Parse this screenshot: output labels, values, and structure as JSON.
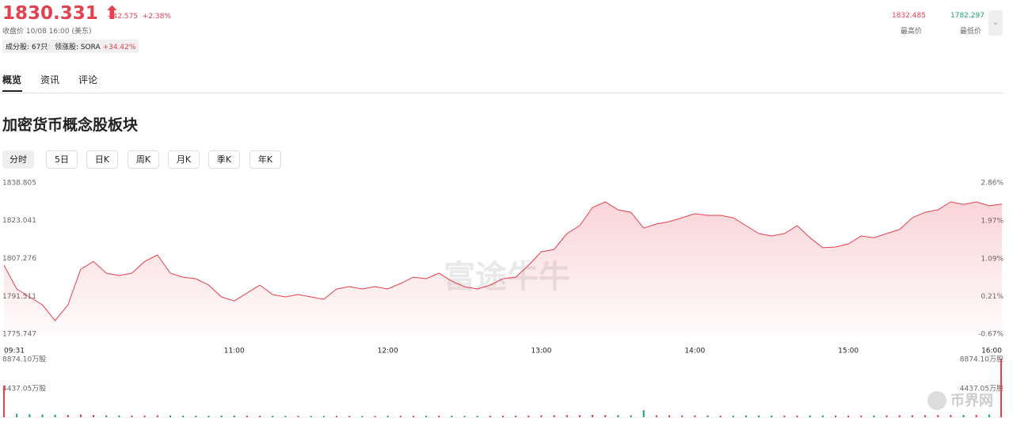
{
  "header": {
    "price": "1830.331",
    "change": "+42.575",
    "change_pct": "+2.38%",
    "close_time": "收盘价 10/08 16:00 (美东)",
    "constituents": "成分股: 67只",
    "leader": "领涨股: SORA",
    "leader_change": "+34.42%",
    "high": "1832.485",
    "high_label": "最高价",
    "low": "1782.297",
    "low_label": "最低价"
  },
  "tabs": [
    "概览",
    "资讯",
    "评论"
  ],
  "section_title": "加密货币概念股板块",
  "periods": [
    "分时",
    "5日",
    "日K",
    "周K",
    "月K",
    "季K",
    "年K"
  ],
  "watermark": "富途牛牛",
  "corner_logo": "币界网",
  "chart_data": [
    {
      "type": "line",
      "color": "#e5404f",
      "x": [
        "09:30",
        "09:35",
        "09:40",
        "09:45",
        "09:50",
        "09:55",
        "10:00",
        "10:05",
        "10:10",
        "10:15",
        "10:20",
        "10:25",
        "10:30",
        "10:35",
        "10:40",
        "10:45",
        "10:50",
        "10:55",
        "11:00",
        "11:05",
        "11:10",
        "11:15",
        "11:20",
        "11:25",
        "11:30",
        "11:35",
        "11:40",
        "11:45",
        "11:50",
        "11:55",
        "12:00",
        "12:05",
        "12:10",
        "12:15",
        "12:20",
        "12:25",
        "12:30",
        "12:35",
        "12:40",
        "12:45",
        "12:50",
        "12:55",
        "13:00",
        "13:05",
        "13:10",
        "13:15",
        "13:20",
        "13:25",
        "13:30",
        "13:35",
        "13:40",
        "13:45",
        "13:50",
        "13:55",
        "14:00",
        "14:05",
        "14:10",
        "14:15",
        "14:20",
        "14:25",
        "14:30",
        "14:35",
        "14:40",
        "14:45",
        "14:50",
        "14:55",
        "15:00",
        "15:05",
        "15:10",
        "15:15",
        "15:20",
        "15:25",
        "15:30",
        "15:35",
        "15:40",
        "15:45",
        "15:50",
        "15:55",
        "16:00"
      ],
      "values": [
        1804.8,
        1794.9,
        1791.6,
        1788.3,
        1781.7,
        1788.3,
        1803.1,
        1806.4,
        1801.5,
        1800.5,
        1801.5,
        1806.4,
        1809.1,
        1801.5,
        1799.8,
        1799.2,
        1796.5,
        1791.6,
        1789.9,
        1793.2,
        1796.5,
        1792.6,
        1791.6,
        1792.6,
        1791.6,
        1790.6,
        1794.9,
        1795.9,
        1794.9,
        1795.9,
        1794.9,
        1797.2,
        1799.8,
        1799.2,
        1801.5,
        1798.2,
        1795.9,
        1794.9,
        1796.5,
        1799.2,
        1799.8,
        1804.8,
        1810.4,
        1811.4,
        1818.0,
        1821.3,
        1828.9,
        1831.2,
        1827.9,
        1826.9,
        1820.3,
        1822.0,
        1823.0,
        1824.6,
        1826.3,
        1825.6,
        1825.6,
        1824.6,
        1821.3,
        1818.0,
        1817.0,
        1818.0,
        1821.3,
        1816.3,
        1812.1,
        1812.4,
        1813.7,
        1817.0,
        1816.3,
        1818.0,
        1819.7,
        1824.6,
        1826.9,
        1827.9,
        1831.2,
        1830.2,
        1831.2,
        1829.6,
        1830.331
      ],
      "ylim": [
        1775.747,
        1838.805
      ],
      "yticks": [
        1775.747,
        1791.511,
        1807.276,
        1823.041,
        1838.805
      ],
      "y2lim": [
        -0.67,
        2.86
      ],
      "y2ticks": [
        {
          "value": -0.67,
          "label": "-0.67%"
        },
        {
          "value": 0.21,
          "label": "0.21%"
        },
        {
          "value": 1.09,
          "label": "1.09%"
        },
        {
          "value": 1.97,
          "label": "1.97%"
        },
        {
          "value": 2.86,
          "label": "2.86%"
        }
      ],
      "xticks": [
        "09:31",
        "11:00",
        "12:00",
        "13:00",
        "14:00",
        "15:00",
        "16:00"
      ]
    },
    {
      "type": "bar",
      "up_color": "#e5404f",
      "down_color": "#1aa06d",
      "values": [
        4800,
        520,
        450,
        400,
        380,
        360,
        420,
        350,
        300,
        280,
        260,
        270,
        300,
        260,
        240,
        230,
        220,
        250,
        260,
        240,
        220,
        210,
        200,
        210,
        200,
        190,
        210,
        200,
        190,
        200,
        210,
        220,
        230,
        220,
        240,
        230,
        210,
        200,
        220,
        230,
        240,
        260,
        300,
        320,
        340,
        330,
        360,
        340,
        320,
        300,
        1080,
        320,
        300,
        280,
        290,
        270,
        260,
        250,
        280,
        270,
        260,
        250,
        260,
        270,
        280,
        270,
        260,
        280,
        270,
        290,
        300,
        320,
        330,
        340,
        350,
        360,
        380,
        420,
        8874.1
      ],
      "ylim": [
        0,
        8874.1
      ],
      "yticks": [
        {
          "value": 4437.05,
          "label": "4437.05万股"
        },
        {
          "value": 8874.1,
          "label": "8874.10万股"
        }
      ]
    }
  ]
}
